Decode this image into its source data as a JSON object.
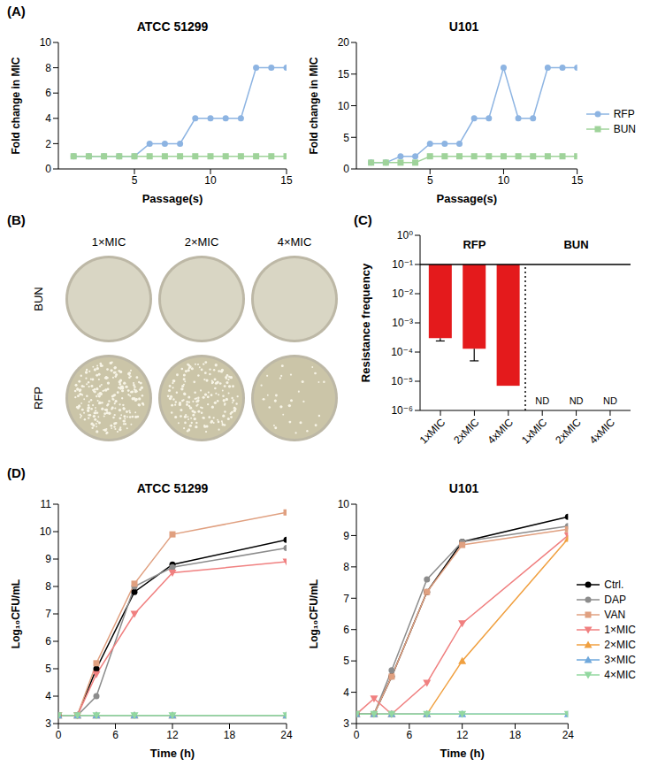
{
  "panel_labels": [
    "(A)",
    "(B)",
    "(C)",
    "(D)"
  ],
  "plates": {
    "columns": [
      "1×MIC",
      "2×MIC",
      "4×MIC"
    ],
    "rows": [
      "BUN",
      "RFP"
    ],
    "growth": [
      [
        false,
        false,
        false
      ],
      [
        true,
        true,
        true
      ]
    ]
  },
  "chart_data": [
    {
      "type": "line",
      "title": "ATCC 51299",
      "xlabel": "Passage(s)",
      "ylabel": "Fold change in MIC",
      "x": [
        1,
        2,
        3,
        4,
        5,
        6,
        7,
        8,
        9,
        10,
        11,
        12,
        13,
        14,
        15
      ],
      "xlim": [
        0,
        15
      ],
      "xticks": [
        5,
        10,
        15
      ],
      "ylim": [
        0,
        10
      ],
      "yticks": [
        0,
        2,
        4,
        6,
        8,
        10
      ],
      "series": [
        {
          "name": "RFP",
          "color": "#8db4e2",
          "marker": "circle",
          "values": [
            1,
            1,
            1,
            1,
            1,
            2,
            2,
            2,
            4,
            4,
            4,
            4,
            8,
            8,
            8
          ]
        },
        {
          "name": "BUN",
          "color": "#9fd39a",
          "marker": "square",
          "values": [
            1,
            1,
            1,
            1,
            1,
            1,
            1,
            1,
            1,
            1,
            1,
            1,
            1,
            1,
            1
          ]
        }
      ]
    },
    {
      "type": "line",
      "title": "U101",
      "xlabel": "Passage(s)",
      "ylabel": "Fold change in MIC",
      "legend": "right",
      "x": [
        1,
        2,
        3,
        4,
        5,
        6,
        7,
        8,
        9,
        10,
        11,
        12,
        13,
        14,
        15
      ],
      "xlim": [
        0,
        15
      ],
      "xticks": [
        5,
        10,
        15
      ],
      "ylim": [
        0,
        20
      ],
      "yticks": [
        0,
        5,
        10,
        15,
        20
      ],
      "series": [
        {
          "name": "RFP",
          "color": "#8db4e2",
          "marker": "circle",
          "values": [
            1,
            1,
            2,
            2,
            4,
            4,
            4,
            8,
            8,
            16,
            8,
            8,
            16,
            16,
            16
          ]
        },
        {
          "name": "BUN",
          "color": "#9fd39a",
          "marker": "square",
          "values": [
            1,
            1,
            1,
            1,
            2,
            2,
            2,
            2,
            2,
            2,
            2,
            2,
            2,
            2,
            2
          ]
        }
      ]
    },
    {
      "type": "bar",
      "log": "y",
      "ylabel": "Resistance frequency",
      "color": "#e41a1c",
      "categories": [
        "1xMIC",
        "2xMIC",
        "4xMIC",
        "1xMIC",
        "2xMIC",
        "4xMIC"
      ],
      "values": [
        0.0003,
        0.00013,
        7e-06,
        null,
        null,
        null
      ],
      "value_labels": [
        null,
        null,
        null,
        "ND",
        "ND",
        "ND"
      ],
      "errors": [
        6e-05,
        8e-05,
        null,
        null,
        null,
        null
      ],
      "baseline": 0.1,
      "groups": [
        {
          "name": "RFP",
          "start": 0,
          "end": 2
        },
        {
          "name": "BUN",
          "start": 3,
          "end": 5
        }
      ],
      "ylim": [
        1e-06,
        1
      ],
      "yticks": [
        {
          "value": 1e-06,
          "label": "10⁻⁶"
        },
        {
          "value": 1e-05,
          "label": "10⁻⁵"
        },
        {
          "value": 0.0001,
          "label": "10⁻⁴"
        },
        {
          "value": 0.001,
          "label": "10⁻³"
        },
        {
          "value": 0.01,
          "label": "10⁻²"
        },
        {
          "value": 0.1,
          "label": "10⁻¹"
        },
        {
          "value": 1,
          "label": "10⁰"
        }
      ]
    },
    {
      "type": "line",
      "title": "ATCC 51299",
      "xlabel": "Time (h)",
      "ylabel": "Log₁₀CFU/mL",
      "x": [
        0,
        2,
        4,
        8,
        12,
        24
      ],
      "xlim": [
        0,
        24
      ],
      "xticks": [
        0,
        6,
        12,
        18,
        24
      ],
      "ylim": [
        3,
        11
      ],
      "yticks": [
        3,
        4,
        5,
        6,
        7,
        8,
        9,
        10,
        11
      ],
      "series": [
        {
          "name": "Ctrl.",
          "color": "#000000",
          "marker": "circle",
          "values": [
            3.3,
            3.3,
            5.0,
            7.8,
            8.8,
            9.7
          ]
        },
        {
          "name": "DAP",
          "color": "#8c8c8c",
          "marker": "circle",
          "values": [
            3.3,
            3.3,
            4.0,
            8.0,
            8.7,
            9.4
          ]
        },
        {
          "name": "VAN",
          "color": "#e0a080",
          "marker": "square",
          "values": [
            3.3,
            3.3,
            5.2,
            8.1,
            9.9,
            10.7
          ]
        },
        {
          "name": "1×MIC",
          "color": "#f08080",
          "marker": "triangle-down",
          "values": [
            3.3,
            3.3,
            4.8,
            7.0,
            8.5,
            8.9
          ]
        },
        {
          "name": "2×MIC",
          "color": "#f0a040",
          "marker": "triangle",
          "values": [
            3.3,
            3.3,
            3.3,
            3.3,
            3.3,
            3.3
          ]
        },
        {
          "name": "3×MIC",
          "color": "#6fa8dc",
          "marker": "triangle",
          "values": [
            3.3,
            3.3,
            3.3,
            3.3,
            3.3,
            3.3
          ]
        },
        {
          "name": "4×MIC",
          "color": "#93d8a0",
          "marker": "triangle-down",
          "values": [
            3.3,
            3.3,
            3.3,
            3.3,
            3.3,
            3.3
          ]
        }
      ]
    },
    {
      "type": "line",
      "title": "U101",
      "xlabel": "Time (h)",
      "ylabel": "Log₁₀CFU/mL",
      "legend": "right",
      "x": [
        0,
        2,
        4,
        8,
        12,
        24
      ],
      "xlim": [
        0,
        24
      ],
      "xticks": [
        0,
        6,
        12,
        18,
        24
      ],
      "ylim": [
        3,
        10
      ],
      "yticks": [
        3,
        4,
        5,
        6,
        7,
        8,
        9,
        10
      ],
      "series": [
        {
          "name": "Ctrl.",
          "color": "#000000",
          "marker": "circle",
          "values": [
            3.3,
            3.3,
            4.5,
            7.2,
            8.8,
            9.6
          ]
        },
        {
          "name": "DAP",
          "color": "#8c8c8c",
          "marker": "circle",
          "values": [
            3.3,
            3.3,
            4.7,
            7.6,
            8.8,
            9.3
          ]
        },
        {
          "name": "VAN",
          "color": "#e0a080",
          "marker": "square",
          "values": [
            3.3,
            3.3,
            4.5,
            7.2,
            8.7,
            9.2
          ]
        },
        {
          "name": "1×MIC",
          "color": "#f08080",
          "marker": "triangle-down",
          "values": [
            3.3,
            3.8,
            3.3,
            4.3,
            6.2,
            9.0
          ]
        },
        {
          "name": "2×MIC",
          "color": "#f0a040",
          "marker": "triangle",
          "values": [
            3.3,
            3.3,
            3.3,
            3.3,
            5.0,
            8.9
          ]
        },
        {
          "name": "3×MIC",
          "color": "#6fa8dc",
          "marker": "triangle",
          "values": [
            3.3,
            3.3,
            3.3,
            3.3,
            3.3,
            3.3
          ]
        },
        {
          "name": "4×MIC",
          "color": "#93d8a0",
          "marker": "triangle-down",
          "values": [
            3.3,
            3.3,
            3.3,
            3.3,
            3.3,
            3.3
          ]
        }
      ]
    }
  ]
}
